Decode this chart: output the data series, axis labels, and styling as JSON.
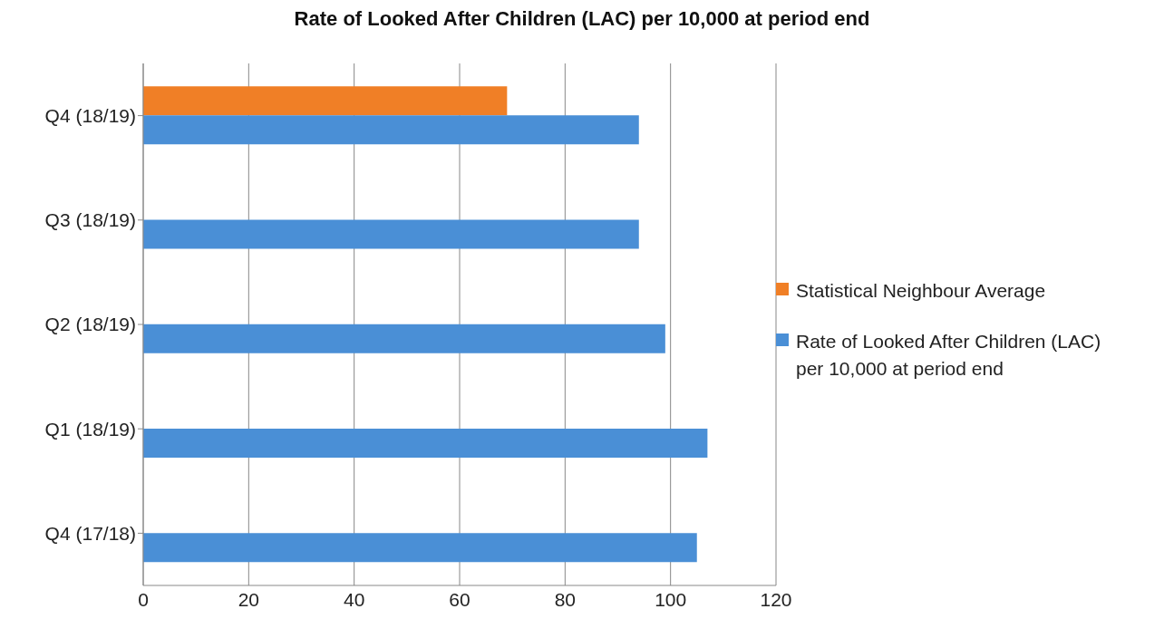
{
  "chart_data": {
    "type": "bar",
    "orientation": "horizontal",
    "title": "Rate of  Looked After Children (LAC) per 10,000 at period end",
    "categories": [
      "Q4 (18/19)",
      "Q3 (18/19)",
      "Q2 (18/19)",
      "Q1 (18/19)",
      "Q4 (17/18)"
    ],
    "series": [
      {
        "name": "Statistical Neighbour Average",
        "color": "#f07f26",
        "values": [
          69,
          null,
          null,
          null,
          null
        ]
      },
      {
        "name": "Rate of  Looked After Children (LAC) per 10,000 at period end",
        "color": "#4a8fd6",
        "values": [
          94,
          94,
          99,
          107,
          105
        ]
      }
    ],
    "xlim": [
      0,
      120
    ],
    "xticks": [
      0,
      20,
      40,
      60,
      80,
      100,
      120
    ],
    "grid": "x",
    "legend": "right"
  }
}
